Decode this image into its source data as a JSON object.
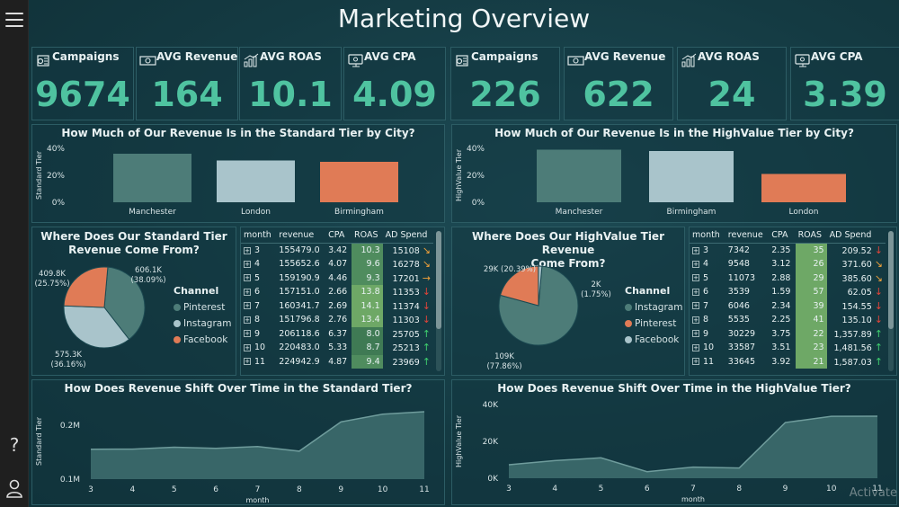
{
  "page_title": "Marketing Overview",
  "watermark": "Activate",
  "colors": {
    "teal": "#4d7c78",
    "light_blue": "#a9c4cb",
    "orange": "#e07b56",
    "kpi_value": "#4fc3a0"
  },
  "left": {
    "kpis": [
      {
        "label": "Campaigns",
        "value": "9674",
        "icon": "campaign-icon"
      },
      {
        "label": "AVG Revenue",
        "value": "164",
        "icon": "money-icon"
      },
      {
        "label": "AVG ROAS",
        "value": "10.1",
        "icon": "bar-chart-icon"
      },
      {
        "label": "AVG CPA",
        "value": "4.09",
        "icon": "cpa-icon"
      }
    ],
    "bar_chart": {
      "title": "How Much of Our Revenue Is in the Standard Tier by City?",
      "ylabel": "Standard Tier",
      "yticks": [
        "40%",
        "20%",
        "0%"
      ]
    },
    "pie": {
      "title_line1": "Where Does Our Standard Tier",
      "title_line2": "Revenue Come From?",
      "label_a": "606.1K",
      "label_a2": "(38.09%)",
      "label_b": "409.8K",
      "label_b2": "(25.75%)",
      "label_c": "575.3K",
      "label_c2": "(36.16%)",
      "legend_title": "Channel",
      "legend": [
        "Pinterest",
        "Instagram",
        "Facebook"
      ]
    },
    "table": {
      "headers": [
        "month",
        "revenue",
        "CPA",
        "ROAS",
        "AD Spend"
      ],
      "rows": [
        {
          "month": "3",
          "revenue": "155479.0",
          "cpa": "3.42",
          "roas": "10.3",
          "spend": "15108",
          "arrow": "↘"
        },
        {
          "month": "4",
          "revenue": "155652.6",
          "cpa": "4.07",
          "roas": "9.6",
          "spend": "16278",
          "arrow": "↘"
        },
        {
          "month": "5",
          "revenue": "159190.9",
          "cpa": "4.46",
          "roas": "9.3",
          "spend": "17201",
          "arrow": "→"
        },
        {
          "month": "6",
          "revenue": "157151.0",
          "cpa": "2.66",
          "roas": "13.8",
          "spend": "11353",
          "arrow": "↓"
        },
        {
          "month": "7",
          "revenue": "160341.7",
          "cpa": "2.69",
          "roas": "14.1",
          "spend": "11374",
          "arrow": "↓"
        },
        {
          "month": "8",
          "revenue": "151796.8",
          "cpa": "2.76",
          "roas": "13.4",
          "spend": "11303",
          "arrow": "↓"
        },
        {
          "month": "9",
          "revenue": "206118.6",
          "cpa": "6.37",
          "roas": "8.0",
          "spend": "25705",
          "arrow": "↑"
        },
        {
          "month": "10",
          "revenue": "220483.0",
          "cpa": "5.33",
          "roas": "8.7",
          "spend": "25213",
          "arrow": "↑"
        },
        {
          "month": "11",
          "revenue": "224942.9",
          "cpa": "4.87",
          "roas": "9.4",
          "spend": "23969",
          "arrow": "↑"
        }
      ]
    },
    "area_chart": {
      "title": "How Does Revenue Shift Over Time in the Standard Tier?",
      "ylabel": "Standard Tier",
      "xlabel": "month",
      "yticks": [
        "0.2M",
        "0.1M"
      ]
    }
  },
  "right": {
    "kpis": [
      {
        "label": "Campaigns",
        "value": "226",
        "icon": "campaign-icon"
      },
      {
        "label": "AVG Revenue",
        "value": "622",
        "icon": "money-icon"
      },
      {
        "label": "AVG ROAS",
        "value": "24",
        "icon": "bar-chart-icon"
      },
      {
        "label": "AVG CPA",
        "value": "3.39",
        "icon": "cpa-icon"
      }
    ],
    "bar_chart": {
      "title": "How Much of Our Revenue Is in the HighValue Tier by City?",
      "ylabel": "HighValue Tier",
      "yticks": [
        "40%",
        "20%",
        "0%"
      ]
    },
    "pie": {
      "title_line1": "Where Does Our HighValue Tier Revenue",
      "title_line2": "Come From?",
      "label_a": "29K (20.39%)",
      "label_b": "2K",
      "label_b2": "(1.75%)",
      "label_c": "109K",
      "label_c2": "(77.86%)",
      "legend_title": "Channel",
      "legend": [
        "Instagram",
        "Pinterest",
        "Facebook"
      ]
    },
    "table": {
      "headers": [
        "month",
        "revenue",
        "CPA",
        "ROAS",
        "AD Spend"
      ],
      "rows": [
        {
          "month": "3",
          "revenue": "7342",
          "cpa": "2.35",
          "roas": "35",
          "spend": "209.52",
          "arrow": "↓"
        },
        {
          "month": "4",
          "revenue": "9548",
          "cpa": "3.12",
          "roas": "26",
          "spend": "371.60",
          "arrow": "↘"
        },
        {
          "month": "5",
          "revenue": "11073",
          "cpa": "2.88",
          "roas": "29",
          "spend": "385.60",
          "arrow": "↘"
        },
        {
          "month": "6",
          "revenue": "3539",
          "cpa": "1.59",
          "roas": "57",
          "spend": "62.05",
          "arrow": "↓"
        },
        {
          "month": "7",
          "revenue": "6046",
          "cpa": "2.34",
          "roas": "39",
          "spend": "154.55",
          "arrow": "↓"
        },
        {
          "month": "8",
          "revenue": "5535",
          "cpa": "2.25",
          "roas": "41",
          "spend": "135.10",
          "arrow": "↓"
        },
        {
          "month": "9",
          "revenue": "30229",
          "cpa": "3.75",
          "roas": "22",
          "spend": "1,357.89",
          "arrow": "↑"
        },
        {
          "month": "10",
          "revenue": "33587",
          "cpa": "3.51",
          "roas": "23",
          "spend": "1,481.56",
          "arrow": "↑"
        },
        {
          "month": "11",
          "revenue": "33645",
          "cpa": "3.92",
          "roas": "21",
          "spend": "1,587.03",
          "arrow": "↑"
        }
      ]
    },
    "area_chart": {
      "title": "How Does Revenue Shift Over Time in the HighValue Tier?",
      "ylabel": "HighValue Tier",
      "xlabel": "month",
      "yticks": [
        "40K",
        "20K",
        "0K"
      ]
    }
  },
  "chart_data": [
    {
      "type": "bar",
      "title": "How Much of Our Revenue Is in the Standard Tier by City?",
      "ylabel": "Standard Tier",
      "categories": [
        "Manchester",
        "London",
        "Birmingham"
      ],
      "values": [
        36,
        31,
        30
      ],
      "colors": [
        "#4d7c78",
        "#a9c4cb",
        "#e07b56"
      ],
      "ylim": [
        0,
        40
      ]
    },
    {
      "type": "bar",
      "title": "How Much of Our Revenue Is in the HighValue Tier by City?",
      "ylabel": "HighValue Tier",
      "categories": [
        "Manchester",
        "Birmingham",
        "London"
      ],
      "values": [
        39,
        38,
        21
      ],
      "colors": [
        "#4d7c78",
        "#a9c4cb",
        "#e07b56"
      ],
      "ylim": [
        0,
        40
      ]
    },
    {
      "type": "pie",
      "title": "Where Does Our Standard Tier Revenue Come From?",
      "categories": [
        "Pinterest",
        "Instagram",
        "Facebook"
      ],
      "values": [
        606.1,
        575.3,
        409.8
      ],
      "percent": [
        38.09,
        36.16,
        25.75
      ],
      "colors": [
        "#4d7c78",
        "#a9c4cb",
        "#e07b56"
      ]
    },
    {
      "type": "pie",
      "title": "Where Does Our HighValue Tier Revenue Come From?",
      "categories": [
        "Instagram",
        "Pinterest",
        "Facebook"
      ],
      "values": [
        109,
        29,
        2
      ],
      "percent": [
        77.86,
        20.39,
        1.75
      ],
      "colors": [
        "#4d7c78",
        "#e07b56",
        "#a9c4cb"
      ]
    },
    {
      "type": "area",
      "title": "How Does Revenue Shift Over Time in the Standard Tier?",
      "xlabel": "month",
      "ylabel": "Standard Tier",
      "x": [
        3,
        4,
        5,
        6,
        7,
        8,
        9,
        10,
        11
      ],
      "values": [
        155479.0,
        155652.6,
        159190.9,
        157151.0,
        160341.7,
        151796.8,
        206118.6,
        220483.0,
        224942.9
      ],
      "ylim": [
        100000,
        240000
      ]
    },
    {
      "type": "area",
      "title": "How Does Revenue Shift Over Time in the HighValue Tier?",
      "xlabel": "month",
      "ylabel": "HighValue Tier",
      "x": [
        3,
        4,
        5,
        6,
        7,
        8,
        9,
        10,
        11
      ],
      "values": [
        7342,
        9548,
        11073,
        3539,
        6046,
        5535,
        30229,
        33587,
        33645
      ],
      "ylim": [
        0,
        40000
      ]
    }
  ]
}
